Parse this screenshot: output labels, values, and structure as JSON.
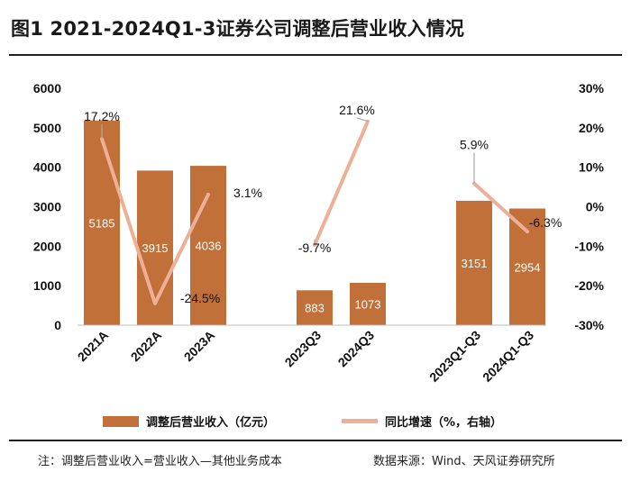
{
  "title": "图1  2021-2024Q1-3证券公司调整后营业收入情况",
  "colors": {
    "bar": "#C07038",
    "line": "#EDB097",
    "leader": "#a8a8a8",
    "bar_text": "#ffffff"
  },
  "legend": {
    "bar_label": "调整后营业收入（亿元）",
    "line_label": "同比增速（%，右轴）"
  },
  "footnote": {
    "note": "注：调整后营业收入=营业收入—其他业务成本",
    "source": "数据来源：Wind、天风证券研究所"
  },
  "chart_data": {
    "type": "bar+line",
    "categories": [
      "2021A",
      "2022A",
      "2023A",
      "2023Q3",
      "2024Q3",
      "2023Q1-Q3",
      "2024Q1-Q3"
    ],
    "groups": [
      [
        0,
        1,
        2
      ],
      [
        3,
        4
      ],
      [
        5,
        6
      ]
    ],
    "series": [
      {
        "name": "调整后营业收入（亿元）",
        "type": "bar",
        "axis": "left",
        "values": [
          5185,
          3915,
          4036,
          883,
          1073,
          3151,
          2954
        ],
        "labels": [
          "5185",
          "3915",
          "4036",
          "883",
          "1073",
          "3151",
          "2954"
        ]
      },
      {
        "name": "同比增速（%，右轴）",
        "type": "line",
        "axis": "right",
        "values": [
          17.2,
          -24.5,
          3.1,
          -9.7,
          21.6,
          5.9,
          -6.3
        ],
        "labels": [
          "17.2%",
          "-24.5%",
          "3.1%",
          "-9.7%",
          "21.6%",
          "5.9%",
          "-6.3%"
        ]
      }
    ],
    "y_left": {
      "min": 0,
      "max": 6000,
      "ticks": [
        0,
        1000,
        2000,
        3000,
        4000,
        5000,
        6000
      ],
      "tick_labels": [
        "0",
        "1000",
        "2000",
        "3000",
        "4000",
        "5000",
        "6000"
      ]
    },
    "y_right": {
      "min": -30,
      "max": 30,
      "ticks": [
        -30,
        -20,
        -10,
        0,
        10,
        20,
        30
      ],
      "tick_labels": [
        "-30%",
        "-20%",
        "-10%",
        "0%",
        "10%",
        "20%",
        "30%"
      ]
    },
    "grid": false
  }
}
